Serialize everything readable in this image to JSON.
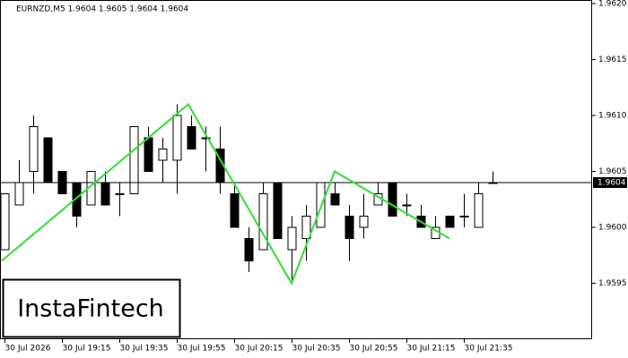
{
  "chart_data": {
    "type": "candlestick",
    "title": "EURNZD,M5  1.9604 1.9605 1.9604 1.9604",
    "watermark": "InstaFintech",
    "categories": [
      "30 Jul 2026",
      null,
      null,
      null,
      "30 Jul 19:15",
      null,
      null,
      null,
      "30 Jul 19:35",
      null,
      null,
      null,
      "30 Jul 19:55",
      null,
      null,
      null,
      "30 Jul 20:15",
      null,
      null,
      null,
      "30 Jul 20:35",
      null,
      null,
      null,
      "30 Jul 20:55",
      null,
      null,
      null,
      "30 Jul 21:15",
      null,
      null,
      null,
      "30 Jul 21:35",
      null,
      null
    ],
    "open": [
      1.9598,
      1.9602,
      1.9605,
      1.9608,
      1.9605,
      1.9604,
      1.9602,
      1.9604,
      1.9603,
      1.9603,
      1.9608,
      1.9606,
      1.9606,
      1.9609,
      1.9608,
      1.9607,
      1.9603,
      1.9599,
      1.9598,
      1.9604,
      1.9598,
      1.9599,
      1.96,
      1.9603,
      1.9601,
      1.96,
      1.9602,
      1.9604,
      1.9602,
      1.9601,
      1.9599,
      1.9601,
      1.9601,
      1.96,
      1.9604
    ],
    "high": [
      1.9603,
      1.9606,
      1.961,
      1.9608,
      1.9605,
      1.9604,
      1.9605,
      1.9605,
      1.9604,
      1.9609,
      1.9609,
      1.9608,
      1.9611,
      1.961,
      1.9609,
      1.9609,
      1.9604,
      1.96,
      1.9604,
      1.9604,
      1.9601,
      1.9602,
      1.9604,
      1.9604,
      1.9602,
      1.9603,
      1.9604,
      1.9604,
      1.9603,
      1.9602,
      1.9601,
      1.9601,
      1.9603,
      1.9604,
      1.9605
    ],
    "low": [
      1.9598,
      1.9602,
      1.9603,
      1.9604,
      1.9603,
      1.96,
      1.9602,
      1.9602,
      1.9601,
      1.9603,
      1.9605,
      1.9604,
      1.9603,
      1.9607,
      1.9605,
      1.9603,
      1.96,
      1.9596,
      1.9598,
      1.9599,
      1.9595,
      1.9597,
      1.96,
      1.9602,
      1.9597,
      1.9599,
      1.9602,
      1.9601,
      1.9601,
      1.96,
      1.9599,
      1.96,
      1.96,
      1.96,
      1.9604
    ],
    "close": [
      1.9603,
      1.9604,
      1.9609,
      1.9604,
      1.9603,
      1.9601,
      1.9605,
      1.9602,
      1.9603,
      1.9609,
      1.9605,
      1.9607,
      1.961,
      1.9607,
      1.9608,
      1.9604,
      1.96,
      1.9597,
      1.9603,
      1.9599,
      1.96,
      1.9601,
      1.9604,
      1.9602,
      1.9599,
      1.9601,
      1.9603,
      1.9601,
      1.9602,
      1.96,
      1.96,
      1.96,
      1.9601,
      1.9603,
      1.9604
    ],
    "up_color": "#ffffff",
    "down_color": "#000000",
    "pattern": {
      "color": "#33dd33",
      "x": [
        -0.2,
        12.8,
        20,
        23,
        31
      ],
      "values": [
        1.9597,
        1.9611,
        1.9595,
        1.9605,
        1.9599
      ]
    },
    "last_price": 1.9604,
    "xlim": [
      -0.3125,
      40.9375
    ],
    "ylim": [
      1.959,
      1.962
    ],
    "yticks": [
      {
        "value": 1.9595,
        "label": "1.9595"
      },
      {
        "value": 1.96,
        "label": "1.9600"
      },
      1.9605,
      {
        "value": 1.961,
        "label": "1.9610"
      },
      1.9615,
      {
        "value": 1.962,
        "label": "1.9620"
      }
    ]
  }
}
